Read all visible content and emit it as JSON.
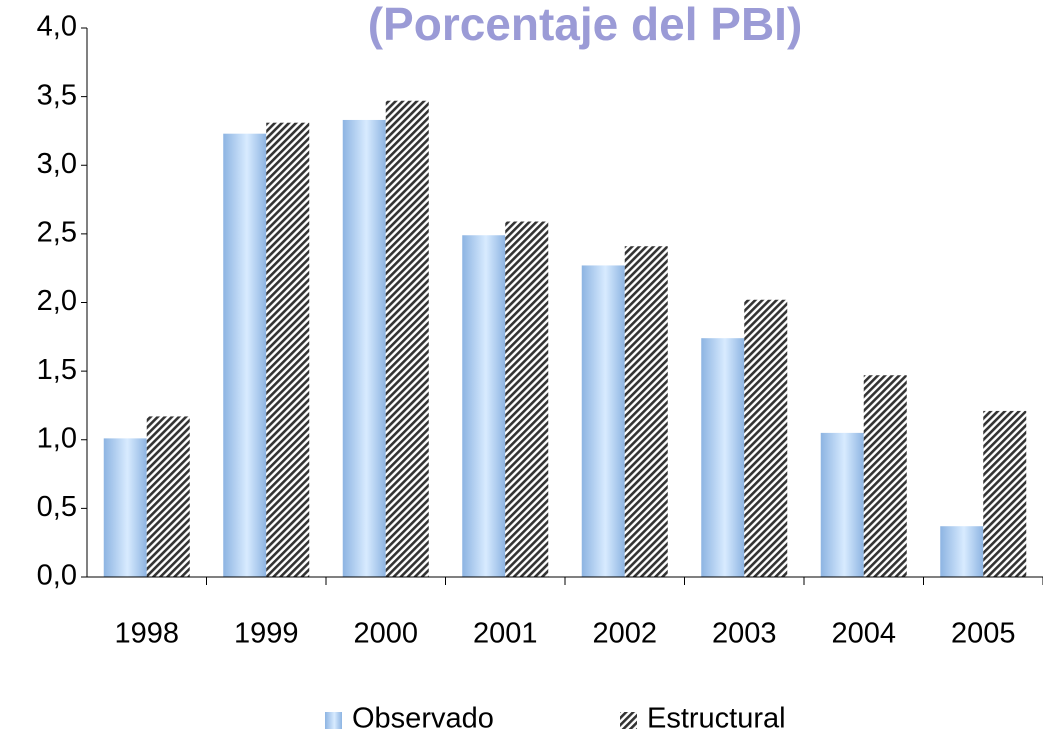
{
  "chart_data": {
    "type": "bar",
    "title": "(Porcentaje del PBI)",
    "categories": [
      "1998",
      "1999",
      "2000",
      "2001",
      "2002",
      "2003",
      "2004",
      "2005"
    ],
    "series": [
      {
        "name": "Observado",
        "color": "#8db4e2",
        "values": [
          1.01,
          3.23,
          3.33,
          2.49,
          2.27,
          1.74,
          1.05,
          0.37
        ]
      },
      {
        "name": "Estructural",
        "color": "#333333",
        "values": [
          1.17,
          3.31,
          3.47,
          2.59,
          2.41,
          2.02,
          1.47,
          1.21
        ]
      }
    ],
    "ylim": [
      0,
      4
    ],
    "yticks": [
      {
        "value": 0,
        "label": "0,0"
      },
      {
        "value": 0.5,
        "label": "0,5"
      },
      {
        "value": 1,
        "label": "1,0"
      },
      {
        "value": 1.5,
        "label": "1,5"
      },
      {
        "value": 2,
        "label": "2,0"
      },
      {
        "value": 2.5,
        "label": "2,5"
      },
      {
        "value": 3,
        "label": "3,0"
      },
      {
        "value": 3.5,
        "label": "3,5"
      },
      {
        "value": 4,
        "label": "4,0"
      }
    ],
    "legend": "bottom"
  }
}
